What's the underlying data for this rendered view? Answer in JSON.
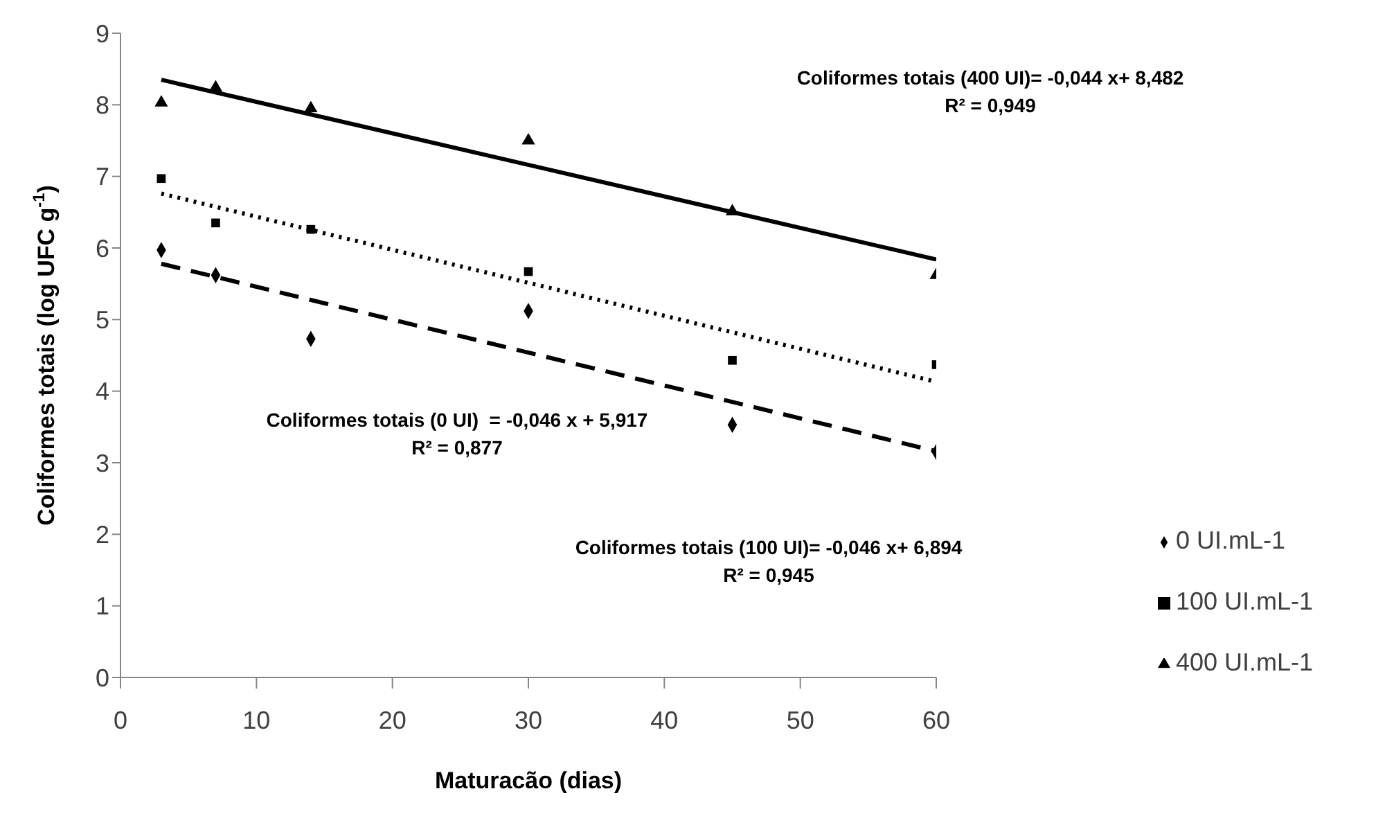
{
  "chart_data": {
    "type": "scatter",
    "xlabel": "Maturacão (dias)",
    "ylabel": "Coliformes totais (log UFC g$^{-1}$)",
    "xlim": [
      0,
      60
    ],
    "xticks": [
      0,
      10,
      20,
      30,
      40,
      50,
      60
    ],
    "ylim": [
      0,
      9
    ],
    "yticks": [
      0,
      1,
      2,
      3,
      4,
      5,
      6,
      7,
      8,
      9
    ],
    "legend": "right",
    "annotations": [
      "Coliformes totais (400 UI)= -0,044 x+ 8,482\nR² = 0,949",
      "Coliformes totais (0 UI)  = -0,046 x + 5,917\nR² = 0,877",
      "Coliformes totais (100 UI)= -0,046 x+ 6,894\nR² = 0,945"
    ],
    "series": [
      {
        "name": "0 UI.mL-1",
        "type": "scatter",
        "marker": "diamond",
        "color": "#000000",
        "x": [
          3,
          7,
          14,
          30,
          45,
          60
        ],
        "values": [
          5.97,
          5.62,
          4.73,
          5.12,
          3.53,
          3.15
        ]
      },
      {
        "name": "100 UI.mL-1",
        "type": "scatter",
        "marker": "square",
        "color": "#000000",
        "x": [
          3,
          7,
          14,
          30,
          45,
          60
        ],
        "values": [
          6.97,
          6.35,
          6.26,
          5.67,
          4.43,
          4.37
        ]
      },
      {
        "name": "400 UI.mL-1",
        "type": "scatter",
        "marker": "triangle",
        "color": "#000000",
        "x": [
          3,
          7,
          14,
          30,
          45,
          60
        ],
        "values": [
          8.03,
          8.24,
          7.95,
          7.5,
          6.51,
          5.62
        ]
      },
      {
        "type": "line",
        "line_style": "dashed",
        "marker": "none",
        "color": "#000000",
        "x": [
          3,
          60
        ],
        "values": [
          5.78,
          3.16
        ]
      },
      {
        "type": "line",
        "line_style": "dotted",
        "marker": "none",
        "color": "#000000",
        "x": [
          3,
          60
        ],
        "values": [
          6.76,
          4.13
        ]
      },
      {
        "type": "line",
        "line_style": "solid",
        "marker": "none",
        "color": "#000000",
        "x": [
          3,
          60
        ],
        "values": [
          8.35,
          5.84
        ]
      }
    ]
  }
}
